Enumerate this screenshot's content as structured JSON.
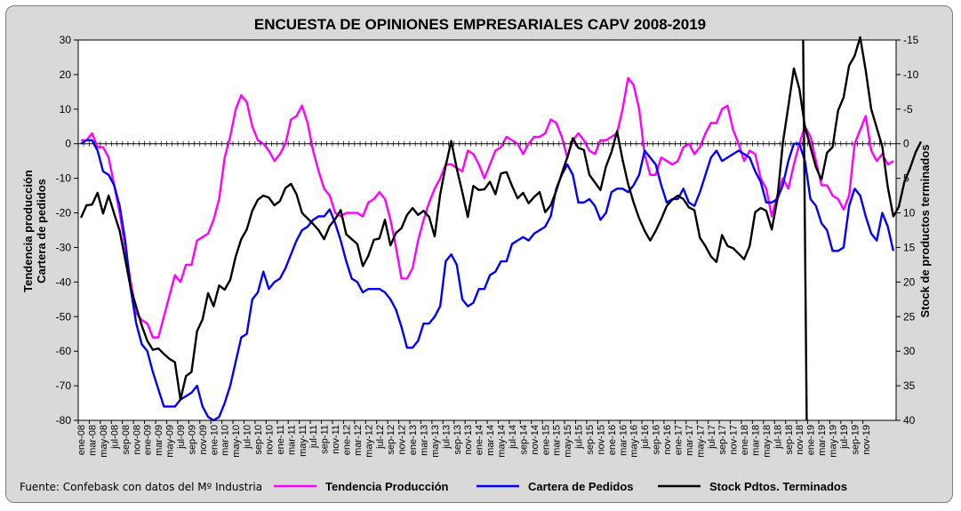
{
  "chart_data": {
    "type": "line",
    "title": "ENCUESTA DE OPINIONES EMPRESARIALES CAPV 2008-2019",
    "ylabel_left_line1": "Tendencia producción",
    "ylabel_left_line2": "Cartera de pedidos",
    "ylabel_right": "Stock de productos terminados",
    "source": "Fuente: Confebask con datos del Mº Industria",
    "y_left": {
      "min": -80,
      "max": 30,
      "step": 10,
      "ticks": [
        "30",
        "20",
        "10",
        "0",
        "-10",
        "-20",
        "-30",
        "-40",
        "-50",
        "-60",
        "-70",
        "-80"
      ]
    },
    "y_right": {
      "min": -15,
      "max": 40,
      "inverted": true,
      "ticks": [
        "-15",
        "-10",
        "-5",
        "0",
        "5",
        "10",
        "15",
        "20",
        "25",
        "30",
        "35",
        "40"
      ]
    },
    "x_labels": [
      "ene-08",
      "mar-08",
      "may-08",
      "jul-08",
      "sep-08",
      "nov-08",
      "ene-09",
      "mar-09",
      "may-09",
      "jul-09",
      "sep-09",
      "nov-09",
      "ene-10",
      "mar-10",
      "may-10",
      "jul-10",
      "sep-10",
      "nov-10",
      "ene-11",
      "mar-11",
      "may-11",
      "jul-11",
      "sep-11",
      "nov-11",
      "ene-12",
      "mar-12",
      "may-12",
      "jul-12",
      "sep-12",
      "nov-12",
      "ene-13",
      "mar-13",
      "may-13",
      "jul-13",
      "sep-13",
      "nov-13",
      "ene-14",
      "mar-14",
      "may-14",
      "jul-14",
      "sep-14",
      "nov-14",
      "ene-15",
      "mar-15",
      "may-15",
      "jul-15",
      "sep-15",
      "nov-15",
      "ene-16",
      "mar-16",
      "may-16",
      "jul-16",
      "sep-16",
      "nov-16",
      "ene-17",
      "mar-17",
      "may-17",
      "jul-17",
      "sep-17",
      "nov-17",
      "ene-18",
      "mar-18",
      "may-18",
      "jul-18",
      "sep-18",
      "nov-18",
      "ene-19",
      "mar-19",
      "may-19",
      "jul-19",
      "sep-19",
      "nov-19"
    ],
    "legend_position": "bottom",
    "series": [
      {
        "name": "Tendencia Producción",
        "axis": "left",
        "color": "#ff00ff",
        "values": [
          1,
          1,
          3,
          -1,
          -1,
          -4,
          -12,
          -20,
          -30,
          -40,
          -49,
          -51,
          -52,
          -56,
          -56,
          -50,
          -44,
          -38,
          -40,
          -35,
          -35,
          -28,
          -27,
          -26,
          -22,
          -16,
          -4,
          2,
          10,
          14,
          12,
          5,
          1,
          0,
          -2,
          -5,
          -3,
          0,
          7,
          8,
          11,
          6,
          -2,
          -8,
          -13,
          -15,
          -20,
          -21,
          -20,
          -20,
          -20,
          -21,
          -17,
          -16,
          -14,
          -16,
          -22,
          -30,
          -39,
          -39,
          -36,
          -28,
          -22,
          -17,
          -13,
          -10,
          -6,
          -6,
          -7,
          -8,
          -2,
          -3,
          -6,
          -10,
          -6,
          -2,
          -1,
          2,
          1,
          0,
          -3,
          0,
          2,
          2,
          3,
          7,
          6,
          2,
          -4,
          1,
          3,
          1,
          -2,
          -3,
          1,
          1,
          2,
          3,
          10,
          19,
          17,
          10,
          -3,
          -9,
          -9,
          -4,
          -5,
          -6,
          -5,
          -1,
          0,
          -3,
          -1,
          3,
          6,
          6,
          10,
          11,
          4,
          0,
          -5,
          -2,
          -3,
          -10,
          -13,
          -21,
          -15,
          -10,
          -13,
          -6,
          0,
          5,
          2,
          -5,
          -12,
          -12,
          -15,
          -16,
          -19,
          -15,
          0,
          4,
          8,
          -2,
          -5,
          -3,
          -6,
          -5
        ]
      },
      {
        "name": "Cartera de Pedidos",
        "axis": "left",
        "color": "#0000ff",
        "values": [
          0,
          1,
          1,
          -2,
          -8,
          -9,
          -12,
          -18,
          -28,
          -42,
          -52,
          -58,
          -60,
          -66,
          -71,
          -76,
          -76,
          -76,
          -74,
          -73,
          -72,
          -70,
          -76,
          -79,
          -80,
          -79,
          -75,
          -70,
          -63,
          -56,
          -55,
          -45,
          -43,
          -37,
          -42,
          -40,
          -39,
          -36,
          -32,
          -28,
          -25,
          -24,
          -22,
          -21,
          -21,
          -19,
          -23,
          -28,
          -34,
          -39,
          -40,
          -43,
          -42,
          -42,
          -42,
          -43,
          -45,
          -48,
          -53,
          -59,
          -59,
          -57,
          -52,
          -52,
          -50,
          -47,
          -34,
          -32,
          -35,
          -45,
          -47,
          -46,
          -42,
          -42,
          -38,
          -37,
          -34,
          -34,
          -29,
          -28,
          -27,
          -28,
          -26,
          -25,
          -24,
          -21,
          -13,
          -9,
          -6,
          -9,
          -17,
          -17,
          -16,
          -18,
          -22,
          -20,
          -14,
          -13,
          -13,
          -14,
          -12,
          -9,
          -2,
          -4,
          -6,
          -12,
          -17,
          -16,
          -16,
          -13,
          -17,
          -18,
          -14,
          -9,
          -4,
          -2,
          -5,
          -4,
          -3,
          -2,
          -3,
          -4,
          -8,
          -11,
          -17,
          -17,
          -16,
          -12,
          -5,
          0,
          0,
          -5,
          -16,
          -18,
          -23,
          -25,
          -31,
          -31,
          -30,
          -18,
          -13,
          -15,
          -21,
          -26,
          -28,
          -20,
          -24,
          -31
        ]
      },
      {
        "name": "Stock Pdtos. Terminados",
        "axis": "right",
        "color": "#000000",
        "values": [
          10.7,
          8.9,
          8.8,
          7.1,
          10.1,
          7.5,
          10.1,
          12.6,
          16.7,
          20.9,
          23.6,
          26.3,
          28.5,
          29.8,
          29.6,
          30.4,
          31.1,
          31.6,
          37,
          33.6,
          33,
          27.1,
          25.4,
          21.6,
          23.5,
          20.5,
          21.1,
          19.7,
          16.3,
          13.8,
          12.4,
          9.7,
          8.1,
          7.5,
          7.8,
          8.9,
          8.3,
          6.4,
          5.8,
          7.3,
          10,
          10.8,
          11.6,
          12.5,
          13.8,
          11.9,
          10.9,
          9.6,
          13.1,
          13.8,
          14.5,
          17.7,
          16.2,
          13.9,
          13.7,
          11,
          14.7,
          12.9,
          12.2,
          10.3,
          9.3,
          10.3,
          9.7,
          10.6,
          13.4,
          7.3,
          3.2,
          -0.4,
          3.6,
          7,
          10.6,
          6.1,
          6.7,
          6.6,
          5.5,
          7.3,
          4.3,
          4.1,
          6.1,
          7.9,
          7.1,
          8.6,
          7.7,
          7,
          9.9,
          8.9,
          6.8,
          4.3,
          2,
          -0.8,
          0.6,
          0.9,
          4.5,
          5.6,
          6.7,
          3.3,
          1.2,
          -1.8,
          2.3,
          5.8,
          8.5,
          10.8,
          12.6,
          14,
          12.6,
          10.9,
          9,
          8.1,
          7.5,
          8,
          9.2,
          9.6,
          13.6,
          14.8,
          16.3,
          17.1,
          13.2,
          14.8,
          15.1,
          15.9,
          16.7,
          14.8,
          9.9,
          9.3,
          9.7,
          12.4,
          8.1,
          -0.1,
          -5.4,
          -10.9,
          -7.9,
          -2.5,
          0.5,
          3.4,
          5.2,
          1.3,
          0.5,
          -4.8,
          -6.7,
          -11.3,
          -12.7,
          -15.4,
          -10.6,
          -5,
          -2.3,
          0.4,
          6.3,
          10.5,
          9.1,
          5.5,
          3.6,
          1.3,
          -0.3
        ]
      }
    ]
  },
  "legend": {
    "items": [
      "Tendencia Producción",
      "Cartera de Pedidos",
      "Stock Pdtos. Terminados"
    ]
  }
}
